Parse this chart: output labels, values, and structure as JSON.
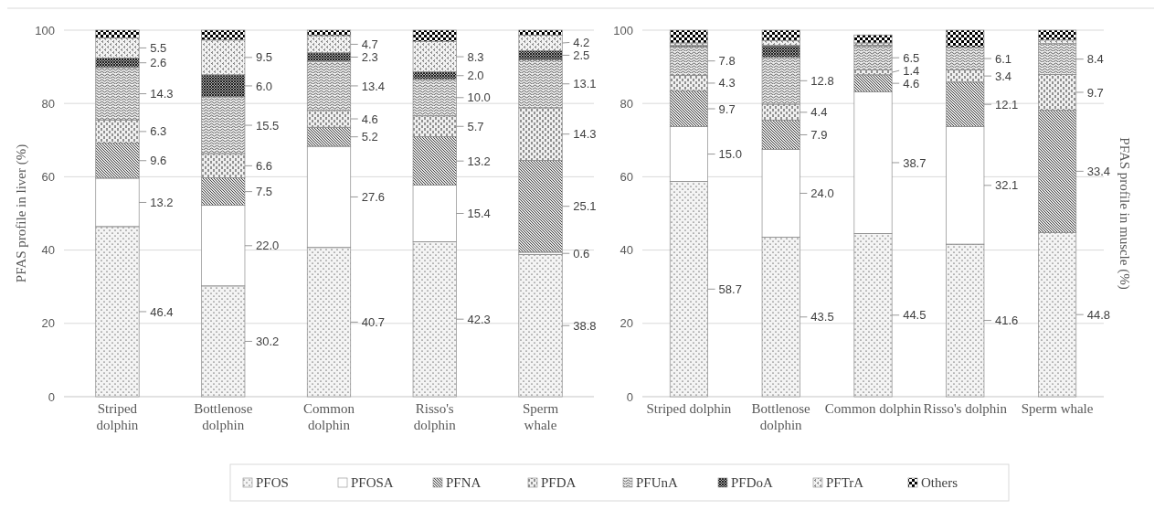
{
  "chart_data": [
    {
      "type": "bar",
      "stacked": true,
      "ylabel": "PFAS profile in liver (%)",
      "categories": [
        "Striped dolphin",
        "Bottlenose dolphin",
        "Common dolphin",
        "Risso's dolphin",
        "Sperm whale"
      ],
      "ylim": [
        0,
        100
      ],
      "yticks": [
        0,
        20,
        40,
        60,
        80,
        100
      ],
      "grid": "y",
      "legend": "bottom",
      "series": [
        {
          "name": "PFOS",
          "color": "#f4f4f4",
          "values": [
            46.4,
            30.2,
            40.7,
            42.3,
            38.8
          ],
          "value_labels": [
            "46.4",
            "30.2",
            "40.7",
            "42.3",
            "38.8"
          ]
        },
        {
          "name": "PFOSA",
          "color": "#ffffff",
          "values": [
            13.2,
            22.0,
            27.6,
            15.4,
            0.6
          ],
          "value_labels": [
            "13.2",
            "22.0",
            "27.6",
            "15.4",
            "0.6"
          ]
        },
        {
          "name": "PFNA",
          "color": "#e6e6e6",
          "values": [
            9.6,
            7.5,
            5.2,
            13.2,
            25.1
          ],
          "value_labels": [
            "9.6",
            "7.5",
            "5.2",
            "13.2",
            "25.1"
          ]
        },
        {
          "name": "PFDA",
          "color": "#f0f0f0",
          "values": [
            6.3,
            6.6,
            4.6,
            5.7,
            14.3
          ],
          "value_labels": [
            "6.3",
            "6.6",
            "4.6",
            "5.7",
            "14.3"
          ]
        },
        {
          "name": "PFUnA",
          "color": "#eeeeee",
          "values": [
            14.3,
            15.5,
            13.4,
            10.0,
            13.1
          ],
          "value_labels": [
            "14.3",
            "15.5",
            "13.4",
            "10.0",
            "13.1"
          ]
        },
        {
          "name": "PFDoA",
          "color": "#a6a6a6",
          "values": [
            2.6,
            6.0,
            2.3,
            2.0,
            2.5
          ],
          "value_labels": [
            "2.6",
            "6.0",
            "2.3",
            "2.0",
            "2.5"
          ]
        },
        {
          "name": "PFTrA",
          "color": "#f2f2f2",
          "values": [
            5.5,
            9.5,
            4.7,
            8.3,
            4.2
          ],
          "value_labels": [
            "5.5",
            "9.5",
            "4.7",
            "8.3",
            "4.2"
          ]
        },
        {
          "name": "Others",
          "color": "#ffffff",
          "values": [
            2.1,
            2.7,
            1.5,
            3.1,
            1.4
          ],
          "value_labels": [
            null,
            null,
            null,
            null,
            null
          ]
        }
      ]
    },
    {
      "type": "bar",
      "stacked": true,
      "ylabel": "PFAS profile in muscle (%)",
      "categories": [
        "Striped dolphin",
        "Bottlenose dolphin",
        "Common dolphin",
        "Risso's dolphin",
        "Sperm whale"
      ],
      "ylim": [
        0,
        100
      ],
      "yticks": [
        0,
        20,
        40,
        60,
        80,
        100
      ],
      "grid": "y",
      "legend": "bottom",
      "series": [
        {
          "name": "PFOS",
          "color": "#f4f4f4",
          "values": [
            58.7,
            43.5,
            44.5,
            41.6,
            44.8
          ],
          "value_labels": [
            "58.7",
            "43.5",
            "44.5",
            "41.6",
            "44.8"
          ]
        },
        {
          "name": "PFOSA",
          "color": "#ffffff",
          "values": [
            15.0,
            24.0,
            38.7,
            32.1,
            0
          ],
          "value_labels": [
            "15.0",
            "24.0",
            "38.7",
            "32.1",
            null
          ]
        },
        {
          "name": "PFNA",
          "color": "#e6e6e6",
          "values": [
            9.7,
            7.9,
            4.6,
            12.1,
            33.4
          ],
          "value_labels": [
            "9.7",
            "7.9",
            "4.6",
            "12.1",
            "33.4"
          ]
        },
        {
          "name": "PFDA",
          "color": "#f0f0f0",
          "values": [
            4.3,
            4.4,
            1.4,
            3.4,
            9.7
          ],
          "value_labels": [
            "4.3",
            "4.4",
            "1.4",
            "3.4",
            "9.7"
          ]
        },
        {
          "name": "PFUnA",
          "color": "#eeeeee",
          "values": [
            7.8,
            12.8,
            6.5,
            6.1,
            8.4
          ],
          "value_labels": [
            "7.8",
            "12.8",
            "6.5",
            "6.1",
            "8.4"
          ]
        },
        {
          "name": "PFDoA",
          "color": "#a6a6a6",
          "values": [
            0.3,
            3.2,
            0.2,
            0,
            0
          ],
          "value_labels": [
            null,
            null,
            null,
            null,
            null
          ]
        },
        {
          "name": "PFTrA",
          "color": "#f2f2f2",
          "values": [
            0.7,
            1.4,
            0.6,
            0,
            1.0
          ],
          "value_labels": [
            null,
            null,
            null,
            null,
            null
          ]
        },
        {
          "name": "Others",
          "color": "#ffffff",
          "values": [
            3.5,
            2.8,
            2.2,
            4.7,
            2.7
          ],
          "value_labels": [
            null,
            null,
            null,
            null,
            null
          ]
        }
      ]
    }
  ]
}
